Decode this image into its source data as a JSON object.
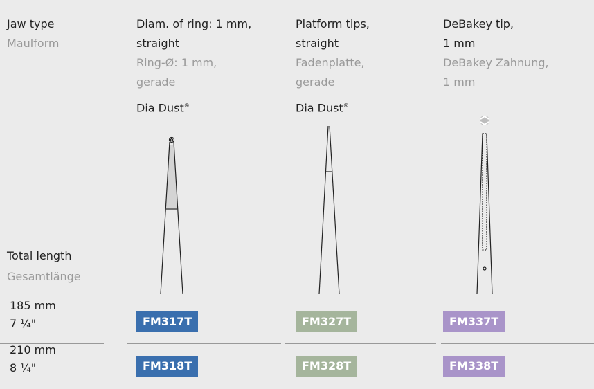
{
  "header": {
    "jaw_type": "Jaw type",
    "jaw_type_de": "Maulform",
    "total_length": "Total length",
    "total_length_de": "Gesamtlänge"
  },
  "columns": [
    {
      "title": [
        "Diam. of ring: 1 mm,",
        "straight"
      ],
      "title_de": [
        "Ring-Ø: 1 mm,",
        "gerade"
      ],
      "coating": "Dia Dust",
      "coating_mark": "®"
    },
    {
      "title": [
        "Platform tips,",
        "straight"
      ],
      "title_de": [
        "Fadenplatte,",
        "gerade"
      ],
      "coating": "Dia Dust",
      "coating_mark": "®"
    },
    {
      "title": [
        "DeBakey tip,",
        "1 mm"
      ],
      "title_de": [
        "DeBakey Zahnung,",
        "1 mm"
      ]
    }
  ],
  "rows": [
    {
      "length_mm": "185 mm",
      "length_in": "7 ¼\"",
      "codes": [
        "FM317T",
        "FM327T",
        "FM337T"
      ]
    },
    {
      "length_mm": "210 mm",
      "length_in": "8 ¼\"",
      "codes": [
        "FM318T",
        "FM328T",
        "FM338T"
      ]
    }
  ]
}
